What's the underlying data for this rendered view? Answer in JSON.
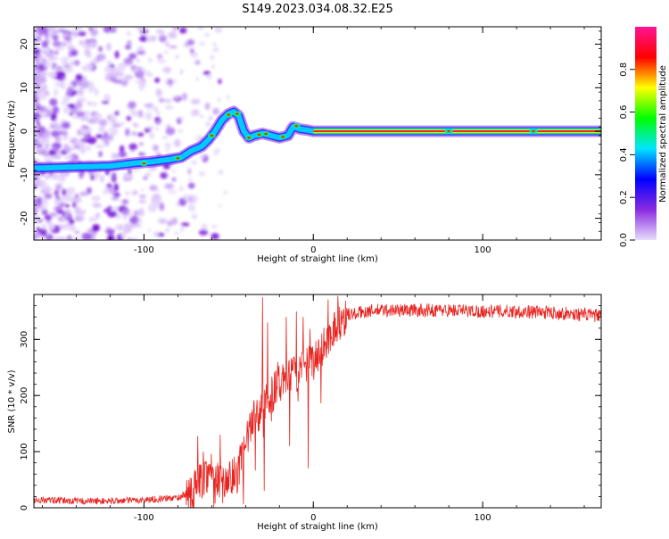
{
  "title": "S149.2023.034.08.32.E25",
  "chart_data": [
    {
      "type": "heatmap",
      "xlabel": "Height of straight line (km)",
      "ylabel": "Frequency (Hz)",
      "xlim": [
        -165,
        170
      ],
      "ylim": [
        -25,
        24
      ],
      "x_ticks": [
        -100,
        0,
        100
      ],
      "y_ticks": [
        -20,
        -10,
        0,
        10,
        20
      ],
      "colorbar": {
        "label": "Normalized spectral amplitude",
        "range": [
          0,
          1
        ],
        "ticks": [
          "0.0",
          "0.2",
          "0.4",
          "0.6",
          "0.8"
        ],
        "colors": [
          "#e8dcfa",
          "#8a2be2",
          "#0000ff",
          "#00e5ff",
          "#00ff00",
          "#ffff00",
          "#ff0000",
          "#ff1493"
        ]
      },
      "ridge": {
        "x": [
          -165,
          -140,
          -120,
          -105,
          -95,
          -85,
          -78,
          -72,
          -66,
          -62,
          -58,
          -54,
          -50,
          -47,
          -44,
          -41,
          -38,
          -35,
          -30,
          -25,
          -20,
          -15,
          -12,
          -8,
          -4,
          0,
          10,
          20,
          170
        ],
        "y": [
          -8.5,
          -8.2,
          -8.0,
          -7.3,
          -7.0,
          -6.5,
          -6.0,
          -4.5,
          -3.5,
          -2.0,
          0.0,
          2.5,
          4.0,
          4.5,
          3.5,
          0.0,
          -1.5,
          -1.0,
          -0.5,
          -1.0,
          -1.5,
          -1.0,
          1.0,
          0.5,
          0.3,
          0.0,
          0.0,
          0.0,
          0.0
        ]
      }
    },
    {
      "type": "line",
      "xlabel": "Height of straight line (km)",
      "ylabel": "SNR (10 * v/v)",
      "xlim": [
        -165,
        170
      ],
      "ylim": [
        0,
        380
      ],
      "x_ticks": [
        -100,
        0,
        100
      ],
      "y_ticks": [
        0,
        100,
        200,
        300
      ],
      "line_color": "#e8231f",
      "envelope": {
        "x": [
          -165,
          -140,
          -120,
          -100,
          -80,
          -72,
          -66,
          -60,
          -55,
          -50,
          -45,
          -40,
          -35,
          -30,
          -25,
          -20,
          -15,
          -10,
          -5,
          0,
          5,
          10,
          15,
          20,
          25,
          30,
          40,
          60,
          80,
          100,
          120,
          140,
          170
        ],
        "y": [
          14,
          12,
          12,
          14,
          18,
          30,
          50,
          70,
          40,
          50,
          60,
          110,
          160,
          180,
          200,
          220,
          230,
          240,
          250,
          260,
          280,
          310,
          330,
          345,
          345,
          350,
          352,
          352,
          352,
          350,
          350,
          348,
          342
        ]
      },
      "spikes": [
        {
          "x": -30,
          "y": 375
        },
        {
          "x": -29,
          "y": 30
        },
        {
          "x": -27,
          "y": 330
        },
        {
          "x": -21,
          "y": 260
        },
        {
          "x": -16,
          "y": 340
        },
        {
          "x": -14,
          "y": 110
        },
        {
          "x": -10,
          "y": 350
        },
        {
          "x": -6,
          "y": 340
        },
        {
          "x": -3,
          "y": 70
        },
        {
          "x": 3,
          "y": 300
        },
        {
          "x": 8,
          "y": 320
        },
        {
          "x": -55,
          "y": 130
        },
        {
          "x": -48,
          "y": 25
        },
        {
          "x": -65,
          "y": 100
        }
      ]
    }
  ]
}
